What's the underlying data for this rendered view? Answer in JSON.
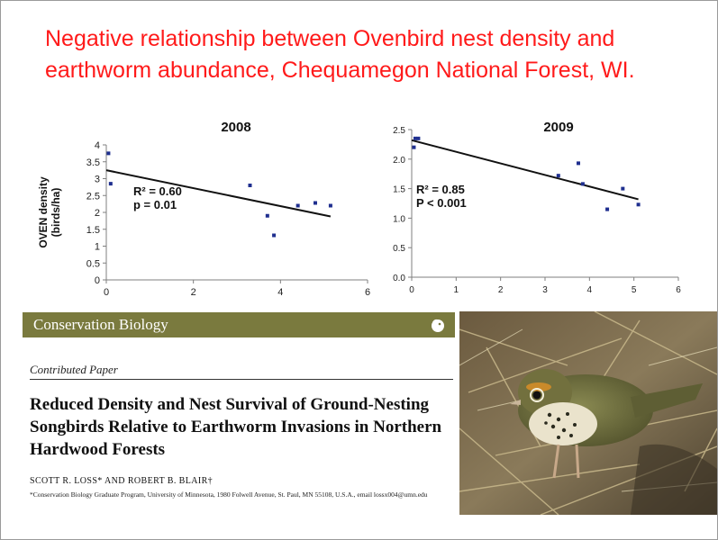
{
  "slide": {
    "title": "Negative relationship between Ovenbird nest density and earthworm abundance, Chequamegon National Forest, WI."
  },
  "colors": {
    "title": "#ff1a1a",
    "points": "#1f2f8f",
    "journal_bar": "#7a7a3e"
  },
  "chart_data": [
    {
      "type": "scatter",
      "title": "2008",
      "ylabel": "OVEN density\n(birds/ha)",
      "xlabel": "",
      "xlim": [
        0,
        6
      ],
      "ylim": [
        0,
        4
      ],
      "x_ticks": [
        "0",
        "2",
        "4",
        "6"
      ],
      "y_ticks": [
        "0",
        "0.5",
        "1",
        "1.5",
        "2",
        "2.5",
        "3",
        "3.5",
        "4"
      ],
      "points": [
        {
          "x": 0.05,
          "y": 3.75
        },
        {
          "x": 0.1,
          "y": 2.85
        },
        {
          "x": 3.3,
          "y": 2.8
        },
        {
          "x": 3.7,
          "y": 1.9
        },
        {
          "x": 3.85,
          "y": 1.32
        },
        {
          "x": 4.4,
          "y": 2.2
        },
        {
          "x": 4.8,
          "y": 2.28
        },
        {
          "x": 5.15,
          "y": 2.2
        }
      ],
      "trendline": {
        "x": [
          0,
          5.15
        ],
        "y": [
          3.25,
          1.88
        ]
      },
      "annotation": {
        "r2": "R² = 0.60",
        "p": "p = 0.01"
      },
      "grid": false
    },
    {
      "type": "scatter",
      "title": "2009",
      "xlabel": "",
      "ylabel": "",
      "xlim": [
        0,
        6
      ],
      "ylim": [
        0,
        2.5
      ],
      "x_ticks": [
        "0",
        "1",
        "2",
        "3",
        "4",
        "5",
        "6"
      ],
      "y_ticks": [
        "0.0",
        "0.5",
        "1.0",
        "1.5",
        "2.0",
        "2.5"
      ],
      "points": [
        {
          "x": 0.05,
          "y": 2.2
        },
        {
          "x": 0.08,
          "y": 2.35
        },
        {
          "x": 0.15,
          "y": 2.35
        },
        {
          "x": 3.3,
          "y": 1.72
        },
        {
          "x": 3.75,
          "y": 1.93
        },
        {
          "x": 3.85,
          "y": 1.58
        },
        {
          "x": 4.4,
          "y": 1.15
        },
        {
          "x": 4.75,
          "y": 1.5
        },
        {
          "x": 5.1,
          "y": 1.23
        }
      ],
      "trendline": {
        "x": [
          0,
          5.1
        ],
        "y": [
          2.32,
          1.32
        ]
      },
      "annotation": {
        "r2": "R² = 0.85",
        "p": "P < 0.001"
      },
      "grid": false
    }
  ],
  "paper": {
    "journal": "Conservation Biology",
    "type": "Contributed Paper",
    "title": "Reduced Density and Nest Survival of Ground-Nesting Songbirds Relative to Earthworm Invasions in Northern Hardwood Forests",
    "authors": "SCOTT R. LOSS* AND ROBERT B. BLAIR†",
    "affiliation": "*Conservation Biology Graduate Program, University of Minnesota, 1980 Folwell Avenue, St. Paul, MN 55108, U.S.A., email lossx004@umn.edu"
  },
  "photo": {
    "subject": "ovenbird-photo"
  }
}
